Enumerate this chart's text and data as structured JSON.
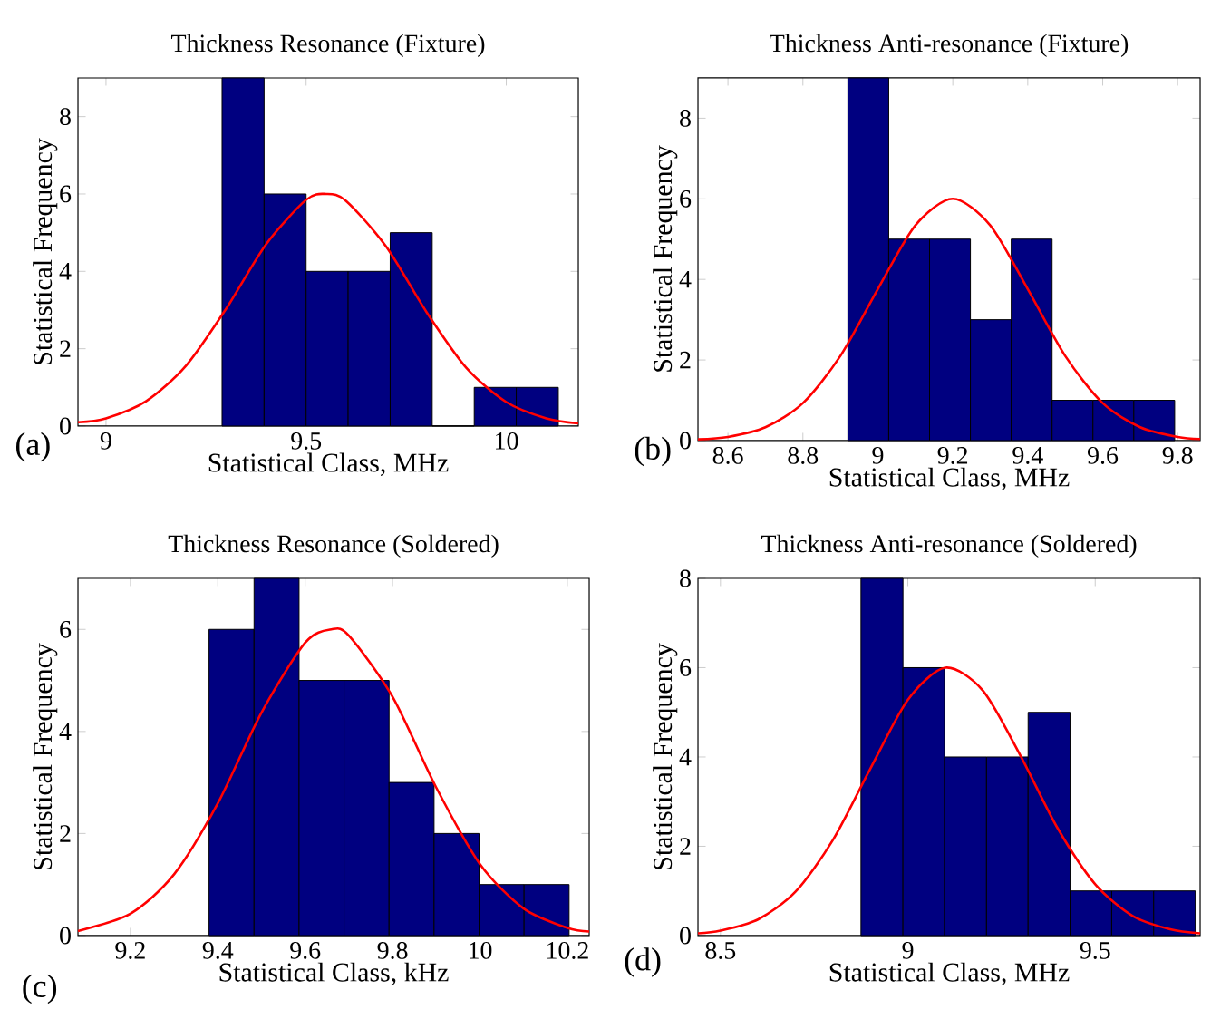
{
  "chart_data": [
    {
      "type": "histogram",
      "title": "Thickness Resonance (Fixture)",
      "xlabel": "Statistical Class, MHz",
      "ylabel": "Statistical Frequency",
      "annotations": [
        "(a)"
      ],
      "color": "#000080",
      "bins": [
        9.29,
        9.395,
        9.5,
        9.605,
        9.71,
        9.815,
        9.92,
        10.025,
        10.13
      ],
      "values": [
        9,
        6,
        4,
        4,
        5,
        0,
        1,
        1
      ],
      "series": [
        {
          "type": "line",
          "color": "#ff0000",
          "x": [
            8.93,
            9.0,
            9.1,
            9.2,
            9.3,
            9.4,
            9.5,
            9.55,
            9.6,
            9.7,
            9.8,
            9.9,
            10.0,
            10.1,
            10.18
          ],
          "values": [
            0.1,
            0.2,
            0.64,
            1.56,
            3.03,
            4.7,
            5.85,
            6.0,
            5.82,
            4.64,
            2.96,
            1.51,
            0.62,
            0.2,
            0.07
          ]
        }
      ],
      "xlim": [
        8.93,
        10.18
      ],
      "ylim": [
        0,
        9
      ],
      "xticks": [
        9,
        9.5,
        10
      ],
      "yticks": [
        0,
        2,
        4,
        6,
        8
      ]
    },
    {
      "type": "histogram",
      "title": "Thickness Anti-resonance (Fixture)",
      "xlabel": "Statistical Class, MHz",
      "ylabel": "Statistical Frequency",
      "annotations": [
        "(b)"
      ],
      "color": "#000080",
      "bins": [
        8.92,
        9.029,
        9.138,
        9.247,
        9.356,
        9.465,
        9.574,
        9.683,
        9.792
      ],
      "values": [
        9,
        5,
        5,
        3,
        5,
        1,
        1,
        1
      ],
      "series": [
        {
          "type": "line",
          "color": "#ff0000",
          "x": [
            8.52,
            8.6,
            8.7,
            8.8,
            8.9,
            9.0,
            9.1,
            9.2,
            9.3,
            9.4,
            9.5,
            9.6,
            9.7,
            9.8,
            9.86
          ],
          "values": [
            0.03,
            0.09,
            0.33,
            0.93,
            2.1,
            3.76,
            5.34,
            6.0,
            5.34,
            3.76,
            2.1,
            0.93,
            0.33,
            0.09,
            0.04
          ]
        }
      ],
      "xlim": [
        8.52,
        9.86
      ],
      "ylim": [
        0,
        9
      ],
      "xticks": [
        8.6,
        8.8,
        9,
        9.2,
        9.4,
        9.6,
        9.8
      ],
      "yticks": [
        0,
        2,
        4,
        6,
        8
      ]
    },
    {
      "type": "histogram",
      "title": "Thickness Resonance (Soldered)",
      "xlabel": "Statistical Class, kHz",
      "ylabel": "Statistical Frequency",
      "annotations": [
        "(c)"
      ],
      "color": "#000080",
      "bins": [
        9.38,
        9.483,
        9.586,
        9.689,
        9.792,
        9.895,
        9.998,
        10.101,
        10.204
      ],
      "values": [
        6,
        7,
        5,
        5,
        3,
        2,
        1,
        1
      ],
      "series": [
        {
          "type": "line",
          "color": "#ff0000",
          "x": [
            9.08,
            9.2,
            9.3,
            9.4,
            9.5,
            9.6,
            9.66,
            9.7,
            9.8,
            9.9,
            10.0,
            10.1,
            10.2,
            10.25
          ],
          "values": [
            0.09,
            0.43,
            1.2,
            2.59,
            4.37,
            5.74,
            6.0,
            5.88,
            4.68,
            2.9,
            1.4,
            0.53,
            0.15,
            0.08
          ]
        }
      ],
      "xlim": [
        9.08,
        10.25
      ],
      "ylim": [
        0,
        7
      ],
      "xticks": [
        9.2,
        9.4,
        9.6,
        9.8,
        10,
        10.2
      ],
      "yticks": [
        0,
        2,
        4,
        6
      ]
    },
    {
      "type": "histogram",
      "title": "Thickness Anti-resonance (Soldered)",
      "xlabel": "Statistical Class, MHz",
      "ylabel": "Statistical Frequency",
      "annotations": [
        "(d)"
      ],
      "color": "#000080",
      "bins": [
        8.875,
        8.987,
        9.098,
        9.21,
        9.321,
        9.433,
        9.544,
        9.656,
        9.767
      ],
      "values": [
        8,
        6,
        4,
        4,
        5,
        1,
        1,
        1
      ],
      "series": [
        {
          "type": "line",
          "color": "#ff0000",
          "x": [
            8.44,
            8.5,
            8.6,
            8.7,
            8.8,
            8.9,
            9.0,
            9.1,
            9.2,
            9.3,
            9.4,
            9.5,
            9.6,
            9.7,
            9.78
          ],
          "values": [
            0.05,
            0.11,
            0.36,
            0.98,
            2.14,
            3.74,
            5.28,
            6.0,
            5.49,
            4.04,
            2.4,
            1.15,
            0.44,
            0.14,
            0.05
          ]
        }
      ],
      "xlim": [
        8.44,
        9.78
      ],
      "ylim": [
        0,
        8
      ],
      "xticks": [
        8.5,
        9,
        9.5
      ],
      "yticks": [
        0,
        2,
        4,
        6,
        8
      ]
    }
  ]
}
